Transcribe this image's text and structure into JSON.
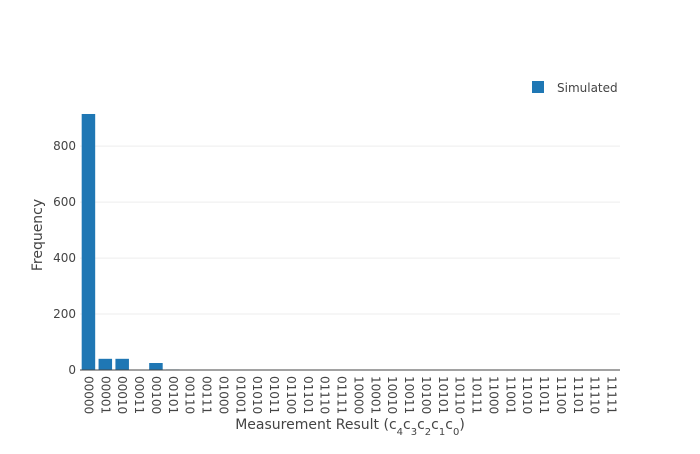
{
  "chart_data": {
    "type": "bar",
    "categories": [
      "00000",
      "00001",
      "00010",
      "00011",
      "00100",
      "00101",
      "00110",
      "00111",
      "01000",
      "01001",
      "01010",
      "01011",
      "01100",
      "01101",
      "01110",
      "01111",
      "10000",
      "10001",
      "10010",
      "10011",
      "10100",
      "10101",
      "10110",
      "10111",
      "11000",
      "11001",
      "11010",
      "11011",
      "11100",
      "11101",
      "11110",
      "11111"
    ],
    "series": [
      {
        "name": "Simulated",
        "values": [
          915,
          40,
          40,
          0,
          25,
          2,
          1,
          1,
          1,
          1,
          1,
          1,
          1,
          0,
          0,
          0,
          0,
          0,
          0,
          0,
          0,
          0,
          0,
          0,
          0,
          0,
          0,
          0,
          0,
          0,
          0,
          0
        ]
      }
    ],
    "ylabel": "Frequency",
    "xlabel": {
      "prefix": "Measurement Result (",
      "chars": [
        "c",
        "4",
        "c",
        "3",
        "c",
        "2",
        "c",
        "1",
        "c",
        "0"
      ],
      "suffix": ")"
    },
    "yticks": [
      "0",
      "200",
      "400",
      "600",
      "800"
    ],
    "ytick_values": [
      0,
      200,
      400,
      600,
      800
    ],
    "ylim": [
      0,
      965
    ],
    "grid": true,
    "legend_position": "top-right",
    "colors": {
      "bar": "#1f77b4",
      "grid": "#eeeeee",
      "axis": "#444444"
    }
  }
}
